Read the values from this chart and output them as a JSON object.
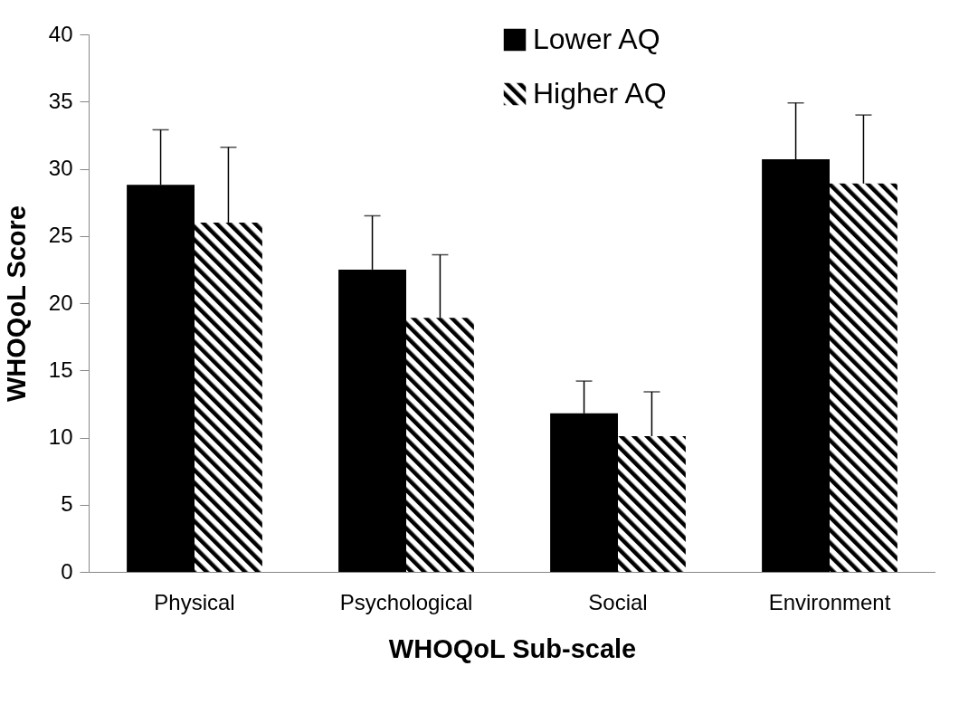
{
  "chart_data": {
    "type": "bar",
    "xlabel": "WHOQoL Sub-scale",
    "ylabel": "WHOQoL Score",
    "categories": [
      "Physical",
      "Psychological",
      "Social",
      "Environment"
    ],
    "series": [
      {
        "name": "Lower AQ",
        "color": "#000000",
        "values": [
          28.8,
          22.5,
          11.8,
          30.7
        ],
        "errors": [
          [
            28.8,
            32.9
          ],
          [
            22.5,
            26.5
          ],
          [
            11.8,
            14.2
          ],
          [
            30.7,
            34.9
          ]
        ]
      },
      {
        "name": "Higher AQ",
        "color": "#000000",
        "values": [
          26.0,
          18.9,
          10.1,
          28.9
        ],
        "errors": [
          [
            26.0,
            31.6
          ],
          [
            18.9,
            23.6
          ],
          [
            10.1,
            13.4
          ],
          [
            28.9,
            34.0
          ]
        ]
      }
    ],
    "ylim": [
      0,
      40
    ],
    "yticks": [
      0,
      5,
      10,
      15,
      20,
      25,
      30,
      35,
      40
    ],
    "grid": false,
    "legend": "top right"
  }
}
